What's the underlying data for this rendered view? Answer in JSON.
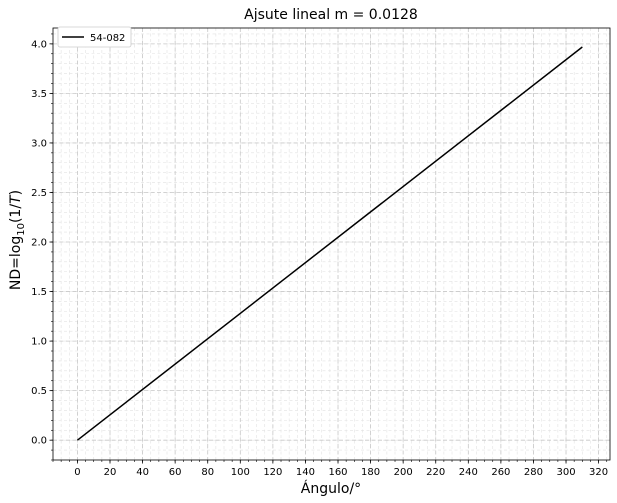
{
  "chart_data": {
    "type": "line",
    "title": "Ajsute lineal m = 0.0128",
    "xlabel": "Ángulo/°",
    "ylabel": {
      "prefix": "ND=log",
      "subscript": "10",
      "open": "(1/",
      "italic": "T",
      "close": ")"
    },
    "xlim": [
      -15,
      327
    ],
    "ylim": [
      -0.2,
      4.16
    ],
    "x_ticks": [
      0,
      20,
      40,
      60,
      80,
      100,
      120,
      140,
      160,
      180,
      200,
      220,
      240,
      260,
      280,
      300,
      320
    ],
    "y_ticks": [
      0.0,
      0.5,
      1.0,
      1.5,
      2.0,
      2.5,
      3.0,
      3.5,
      4.0
    ],
    "x_tick_labels": [
      "0",
      "20",
      "40",
      "60",
      "80",
      "100",
      "120",
      "140",
      "160",
      "180",
      "200",
      "220",
      "240",
      "260",
      "280",
      "300",
      "320"
    ],
    "y_tick_labels": [
      "0.0",
      "0.5",
      "1.0",
      "1.5",
      "2.0",
      "2.5",
      "3.0",
      "3.5",
      "4.0"
    ],
    "x_minor_step": 5,
    "y_minor_step": 0.1,
    "grid": true,
    "legend_position": "top-left",
    "series": [
      {
        "name": "54-082",
        "color": "#000000",
        "x": [
          0,
          310
        ],
        "y": [
          0.0,
          3.968
        ]
      }
    ]
  }
}
